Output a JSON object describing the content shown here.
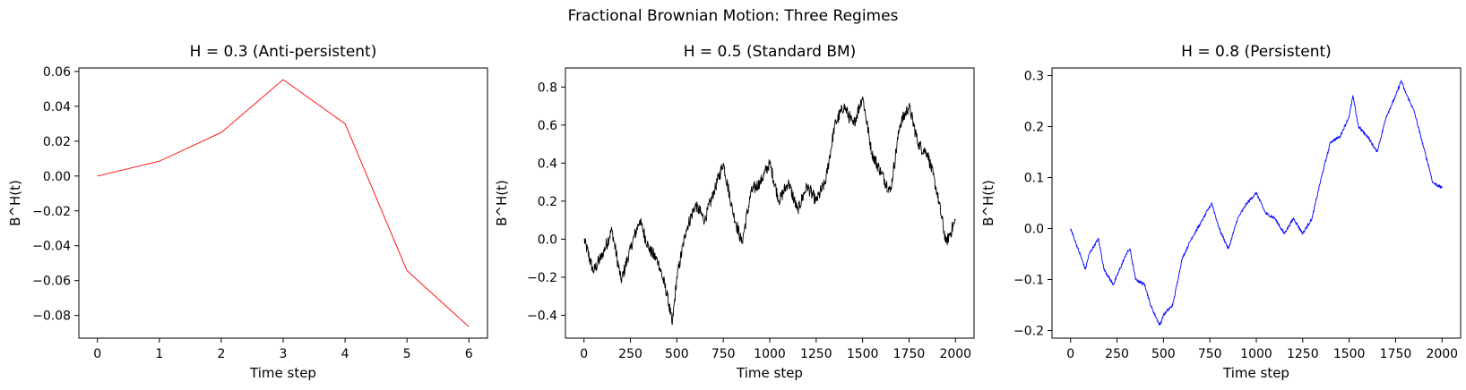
{
  "figure": {
    "suptitle": "Fractional Brownian Motion: Three Regimes"
  },
  "chart_data": [
    {
      "type": "line",
      "title": "H = 0.3 (Anti-persistent)",
      "xlabel": "Time step",
      "ylabel": "B^H(t)",
      "color": "#ff0000",
      "xlim": [
        -0.3,
        6.3
      ],
      "ylim": [
        -0.093,
        0.062
      ],
      "xticks": [
        0,
        1,
        2,
        3,
        4,
        5,
        6
      ],
      "yticks": [
        -0.08,
        -0.06,
        -0.04,
        -0.02,
        0.0,
        0.02,
        0.04,
        0.06
      ],
      "ytick_labels": [
        "−0.08",
        "−0.06",
        "−0.04",
        "−0.02",
        "0.00",
        "0.02",
        "0.04",
        "0.06"
      ],
      "grid": false,
      "series": [
        {
          "x": [
            0,
            1,
            2,
            3,
            4,
            5,
            6
          ],
          "y": [
            0.0,
            0.0085,
            0.025,
            0.0553,
            0.03,
            -0.0543,
            -0.0865
          ]
        }
      ]
    },
    {
      "type": "line",
      "title": "H = 0.5 (Standard BM)",
      "xlabel": "Time step",
      "ylabel": "B^H(t)",
      "color": "#000000",
      "xlim": [
        -100,
        2100
      ],
      "ylim": [
        -0.52,
        0.9
      ],
      "xticks": [
        0,
        250,
        500,
        750,
        1000,
        1250,
        1500,
        1750,
        2000
      ],
      "yticks": [
        -0.4,
        -0.2,
        0.0,
        0.2,
        0.4,
        0.6,
        0.8
      ],
      "ytick_labels": [
        "−0.4",
        "−0.2",
        "0.0",
        "0.2",
        "0.4",
        "0.6",
        "0.8"
      ],
      "grid": false,
      "series": [
        {
          "x": [
            0,
            50,
            100,
            150,
            200,
            250,
            300,
            350,
            400,
            450,
            475,
            500,
            550,
            600,
            650,
            700,
            750,
            800,
            850,
            900,
            950,
            1000,
            1050,
            1100,
            1150,
            1200,
            1250,
            1300,
            1350,
            1400,
            1450,
            1500,
            1550,
            1600,
            1650,
            1700,
            1750,
            1800,
            1850,
            1900,
            1950,
            2000
          ],
          "y": [
            0.0,
            -0.17,
            -0.08,
            0.05,
            -0.22,
            -0.05,
            0.1,
            -0.05,
            -0.12,
            -0.3,
            -0.45,
            -0.2,
            0.05,
            0.18,
            0.1,
            0.25,
            0.4,
            0.15,
            -0.02,
            0.25,
            0.3,
            0.4,
            0.2,
            0.3,
            0.15,
            0.28,
            0.2,
            0.3,
            0.6,
            0.7,
            0.6,
            0.75,
            0.45,
            0.35,
            0.25,
            0.6,
            0.7,
            0.5,
            0.45,
            0.25,
            -0.02,
            0.1
          ]
        }
      ]
    },
    {
      "type": "line",
      "title": "H = 0.8 (Persistent)",
      "xlabel": "Time step",
      "ylabel": "B^H(t)",
      "color": "#0000ff",
      "xlim": [
        -100,
        2100
      ],
      "ylim": [
        -0.215,
        0.315
      ],
      "xticks": [
        0,
        250,
        500,
        750,
        1000,
        1250,
        1500,
        1750,
        2000
      ],
      "yticks": [
        -0.2,
        -0.1,
        0.0,
        0.1,
        0.2,
        0.3
      ],
      "ytick_labels": [
        "−0.2",
        "−0.1",
        "0.0",
        "0.1",
        "0.2",
        "0.3"
      ],
      "grid": false,
      "series": [
        {
          "x": [
            0,
            30,
            80,
            100,
            150,
            180,
            230,
            300,
            320,
            350,
            400,
            430,
            480,
            500,
            550,
            600,
            650,
            700,
            760,
            800,
            850,
            900,
            950,
            1000,
            1050,
            1100,
            1150,
            1200,
            1250,
            1300,
            1350,
            1400,
            1450,
            1500,
            1520,
            1550,
            1600,
            1650,
            1700,
            1750,
            1780,
            1800,
            1850,
            1900,
            1930,
            1950,
            2000
          ],
          "y": [
            0.0,
            -0.03,
            -0.08,
            -0.05,
            -0.02,
            -0.08,
            -0.11,
            -0.05,
            -0.04,
            -0.1,
            -0.11,
            -0.15,
            -0.19,
            -0.17,
            -0.15,
            -0.06,
            -0.02,
            0.01,
            0.05,
            0.0,
            -0.04,
            0.02,
            0.05,
            0.07,
            0.03,
            0.02,
            -0.01,
            0.02,
            -0.01,
            0.02,
            0.1,
            0.17,
            0.18,
            0.22,
            0.26,
            0.2,
            0.18,
            0.15,
            0.22,
            0.26,
            0.29,
            0.27,
            0.23,
            0.16,
            0.12,
            0.09,
            0.08
          ]
        }
      ]
    }
  ]
}
